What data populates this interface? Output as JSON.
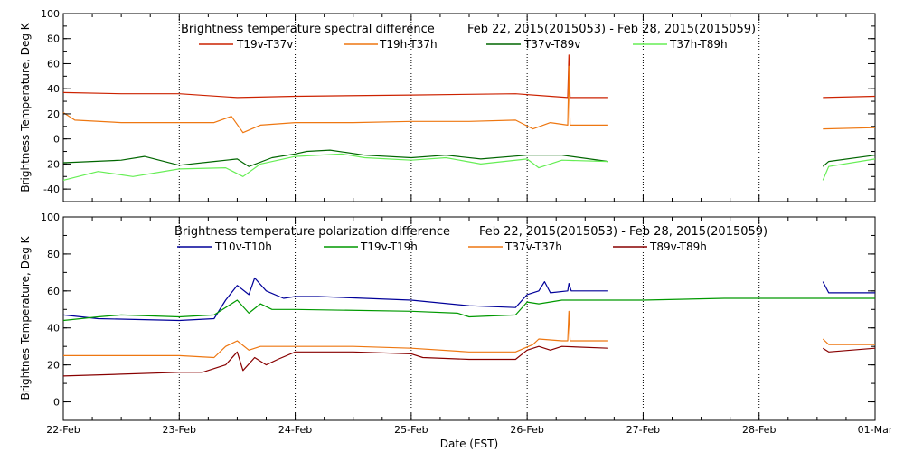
{
  "xlabel": "Date (EST)",
  "x_tick_labels": [
    "22-Feb",
    "23-Feb",
    "24-Feb",
    "25-Feb",
    "26-Feb",
    "27-Feb",
    "28-Feb",
    "01-Mar"
  ],
  "chart_data": [
    {
      "type": "line",
      "title": "Brightness temperature spectral difference",
      "date_range": "Feb 22, 2015(2015053) - Feb 28, 2015(2015059)",
      "ylabel": "Brightness Temperature, Deg K",
      "xlim": [
        0,
        7
      ],
      "ylim": [
        -50,
        100
      ],
      "yticks": [
        -40,
        -20,
        0,
        20,
        40,
        60,
        80,
        100
      ],
      "grid": "vertical dotted",
      "series": [
        {
          "name": "T19v-T37v",
          "color": "#cc2200",
          "points": [
            [
              0,
              37
            ],
            [
              0.5,
              36
            ],
            [
              1,
              36
            ],
            [
              1.5,
              33
            ],
            [
              2,
              34
            ],
            [
              3,
              35
            ],
            [
              3.9,
              36
            ],
            [
              4.2,
              34
            ],
            [
              4.35,
              33
            ],
            [
              4.36,
              67
            ],
            [
              4.37,
              33
            ],
            [
              4.7,
              33
            ],
            [
              null,
              null
            ],
            [
              6.55,
              33
            ],
            [
              7,
              34
            ]
          ]
        },
        {
          "name": "T19h-T37h",
          "color": "#ee7711",
          "points": [
            [
              0,
              21
            ],
            [
              0.1,
              15
            ],
            [
              0.5,
              13
            ],
            [
              1,
              13
            ],
            [
              1.3,
              13
            ],
            [
              1.45,
              18
            ],
            [
              1.55,
              5
            ],
            [
              1.7,
              11
            ],
            [
              2,
              13
            ],
            [
              2.5,
              13
            ],
            [
              3,
              14
            ],
            [
              3.5,
              14
            ],
            [
              3.9,
              15
            ],
            [
              4.05,
              8
            ],
            [
              4.2,
              13
            ],
            [
              4.35,
              11
            ],
            [
              4.36,
              58
            ],
            [
              4.37,
              11
            ],
            [
              4.7,
              11
            ],
            [
              null,
              null
            ],
            [
              6.55,
              8
            ],
            [
              7,
              9
            ]
          ]
        },
        {
          "name": "T37v-T89v",
          "color": "#006600",
          "points": [
            [
              0,
              -19
            ],
            [
              0.5,
              -17
            ],
            [
              0.7,
              -14
            ],
            [
              1,
              -21
            ],
            [
              1.3,
              -18
            ],
            [
              1.5,
              -16
            ],
            [
              1.6,
              -22
            ],
            [
              1.8,
              -15
            ],
            [
              2,
              -12
            ],
            [
              2.1,
              -10
            ],
            [
              2.3,
              -9
            ],
            [
              2.6,
              -13
            ],
            [
              3,
              -15
            ],
            [
              3.3,
              -13
            ],
            [
              3.6,
              -16
            ],
            [
              4,
              -13
            ],
            [
              4.3,
              -13
            ],
            [
              4.7,
              -18
            ],
            [
              null,
              null
            ],
            [
              6.55,
              -22
            ],
            [
              6.6,
              -18
            ],
            [
              7,
              -13
            ]
          ]
        },
        {
          "name": "T37h-T89h",
          "color": "#66ee55",
          "points": [
            [
              0,
              -33
            ],
            [
              0.3,
              -26
            ],
            [
              0.6,
              -30
            ],
            [
              1,
              -24
            ],
            [
              1.4,
              -23
            ],
            [
              1.55,
              -30
            ],
            [
              1.7,
              -20
            ],
            [
              2,
              -14
            ],
            [
              2.4,
              -12
            ],
            [
              2.6,
              -15
            ],
            [
              3,
              -17
            ],
            [
              3.3,
              -15
            ],
            [
              3.6,
              -20
            ],
            [
              4,
              -16
            ],
            [
              4.1,
              -23
            ],
            [
              4.3,
              -17
            ],
            [
              4.7,
              -18
            ],
            [
              null,
              null
            ],
            [
              6.55,
              -33
            ],
            [
              6.6,
              -22
            ],
            [
              7,
              -16
            ]
          ]
        }
      ]
    },
    {
      "type": "line",
      "title": "Brightness temperature polarization difference",
      "date_range": "Feb 22, 2015(2015053) - Feb 28, 2015(2015059)",
      "ylabel": "Brightnes Temperature, Deg K",
      "xlim": [
        0,
        7
      ],
      "ylim": [
        -10,
        100
      ],
      "yticks": [
        0,
        20,
        40,
        60,
        80,
        100
      ],
      "grid": "vertical dotted",
      "series": [
        {
          "name": "T10v-T10h",
          "color": "#000099",
          "points": [
            [
              0,
              47
            ],
            [
              0.3,
              45
            ],
            [
              1,
              44
            ],
            [
              1.3,
              45
            ],
            [
              1.4,
              55
            ],
            [
              1.5,
              63
            ],
            [
              1.6,
              58
            ],
            [
              1.65,
              67
            ],
            [
              1.75,
              60
            ],
            [
              1.9,
              56
            ],
            [
              2,
              57
            ],
            [
              2.2,
              57
            ],
            [
              3,
              55
            ],
            [
              3.5,
              52
            ],
            [
              3.9,
              51
            ],
            [
              4.0,
              58
            ],
            [
              4.1,
              60
            ],
            [
              4.15,
              65
            ],
            [
              4.2,
              59
            ],
            [
              4.35,
              60
            ],
            [
              4.36,
              64
            ],
            [
              4.38,
              60
            ],
            [
              4.7,
              60
            ],
            [
              null,
              null
            ],
            [
              6.55,
              65
            ],
            [
              6.6,
              59
            ],
            [
              7,
              59
            ]
          ]
        },
        {
          "name": "T19v-T19h",
          "color": "#009900",
          "points": [
            [
              0,
              44
            ],
            [
              0.3,
              46
            ],
            [
              0.5,
              47
            ],
            [
              1,
              46
            ],
            [
              1.3,
              47
            ],
            [
              1.35,
              49
            ],
            [
              1.5,
              55
            ],
            [
              1.6,
              48
            ],
            [
              1.7,
              53
            ],
            [
              1.8,
              50
            ],
            [
              2,
              50
            ],
            [
              3,
              49
            ],
            [
              3.4,
              48
            ],
            [
              3.5,
              46
            ],
            [
              3.9,
              47
            ],
            [
              4.0,
              54
            ],
            [
              4.1,
              53
            ],
            [
              4.3,
              55
            ],
            [
              4.7,
              55
            ],
            [
              5,
              55
            ],
            [
              5.7,
              56
            ],
            [
              6,
              56
            ],
            [
              7,
              56
            ]
          ]
        },
        {
          "name": "T37v-T37h",
          "color": "#ee7711",
          "points": [
            [
              0,
              25
            ],
            [
              0.5,
              25
            ],
            [
              1,
              25
            ],
            [
              1.3,
              24
            ],
            [
              1.4,
              30
            ],
            [
              1.5,
              33
            ],
            [
              1.6,
              28
            ],
            [
              1.7,
              30
            ],
            [
              2,
              30
            ],
            [
              2.5,
              30
            ],
            [
              3,
              29
            ],
            [
              3.5,
              27
            ],
            [
              3.9,
              27
            ],
            [
              4.05,
              31
            ],
            [
              4.1,
              34
            ],
            [
              4.3,
              33
            ],
            [
              4.35,
              33
            ],
            [
              4.36,
              49
            ],
            [
              4.37,
              33
            ],
            [
              4.7,
              33
            ],
            [
              null,
              null
            ],
            [
              6.55,
              34
            ],
            [
              6.6,
              31
            ],
            [
              7,
              31
            ]
          ]
        },
        {
          "name": "T89v-T89h",
          "color": "#880000",
          "points": [
            [
              0,
              14
            ],
            [
              0.5,
              15
            ],
            [
              1,
              16
            ],
            [
              1.2,
              16
            ],
            [
              1.4,
              20
            ],
            [
              1.5,
              27
            ],
            [
              1.55,
              17
            ],
            [
              1.65,
              24
            ],
            [
              1.75,
              20
            ],
            [
              1.85,
              23
            ],
            [
              2,
              27
            ],
            [
              2.5,
              27
            ],
            [
              3,
              26
            ],
            [
              3.1,
              24
            ],
            [
              3.5,
              23
            ],
            [
              3.9,
              23
            ],
            [
              4.0,
              28
            ],
            [
              4.1,
              30
            ],
            [
              4.2,
              28
            ],
            [
              4.3,
              30
            ],
            [
              4.7,
              29
            ],
            [
              null,
              null
            ],
            [
              6.55,
              29
            ],
            [
              6.6,
              27
            ],
            [
              7,
              29
            ]
          ]
        }
      ]
    }
  ]
}
